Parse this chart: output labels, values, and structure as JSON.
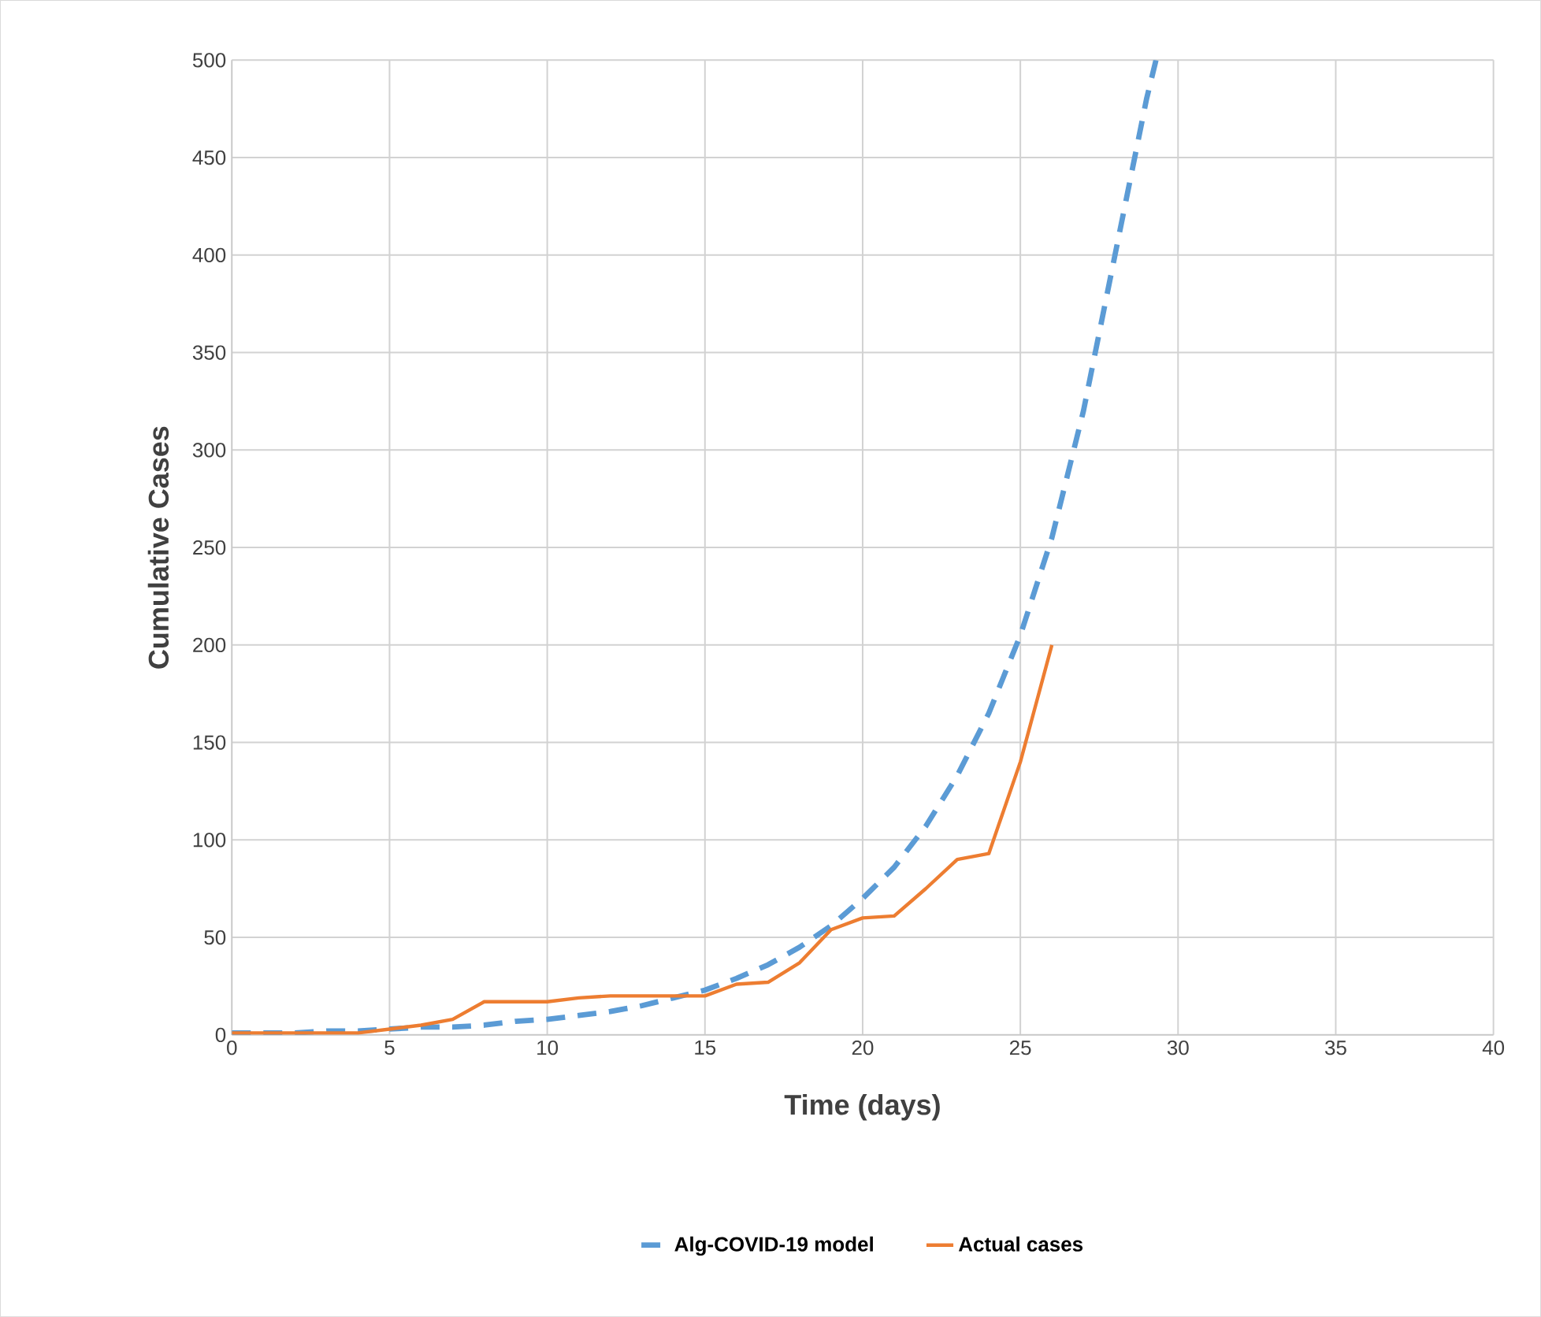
{
  "chart_data": {
    "type": "line",
    "xlabel": "Time (days)",
    "ylabel": "Cumulative Cases",
    "xlim": [
      0,
      40
    ],
    "ylim": [
      0,
      500
    ],
    "xticks": [
      0,
      5,
      10,
      15,
      20,
      25,
      30,
      35,
      40
    ],
    "yticks": [
      0,
      50,
      100,
      150,
      200,
      250,
      300,
      350,
      400,
      450,
      500
    ],
    "grid": true,
    "legend": "bottom",
    "series": [
      {
        "name": "Alg-COVID-19 model",
        "color": "#5b9bd5",
        "line_style": "dashed",
        "x": [
          0,
          1,
          2,
          3,
          4,
          5,
          6,
          7,
          8,
          9,
          10,
          11,
          12,
          13,
          14,
          15,
          16,
          17,
          18,
          19,
          20,
          21,
          22,
          23,
          24,
          25,
          26,
          27,
          28,
          29,
          29.3
        ],
        "values": [
          1,
          1,
          1,
          2,
          2,
          3,
          4,
          4,
          5,
          7,
          8,
          10,
          12,
          15,
          19,
          23,
          29,
          36,
          45,
          56,
          70,
          86,
          107,
          133,
          165,
          205,
          255,
          320,
          400,
          480,
          500
        ]
      },
      {
        "name": "Actual cases",
        "color": "#ed7d31",
        "line_style": "solid",
        "x": [
          0,
          1,
          2,
          3,
          4,
          5,
          6,
          7,
          8,
          9,
          10,
          11,
          12,
          13,
          14,
          15,
          16,
          17,
          18,
          19,
          20,
          21,
          22,
          23,
          24,
          25,
          26
        ],
        "values": [
          1,
          1,
          1,
          1,
          1,
          3,
          5,
          8,
          17,
          17,
          17,
          19,
          20,
          20,
          20,
          20,
          26,
          27,
          37,
          54,
          60,
          61,
          75,
          90,
          93,
          140,
          200
        ]
      }
    ]
  }
}
